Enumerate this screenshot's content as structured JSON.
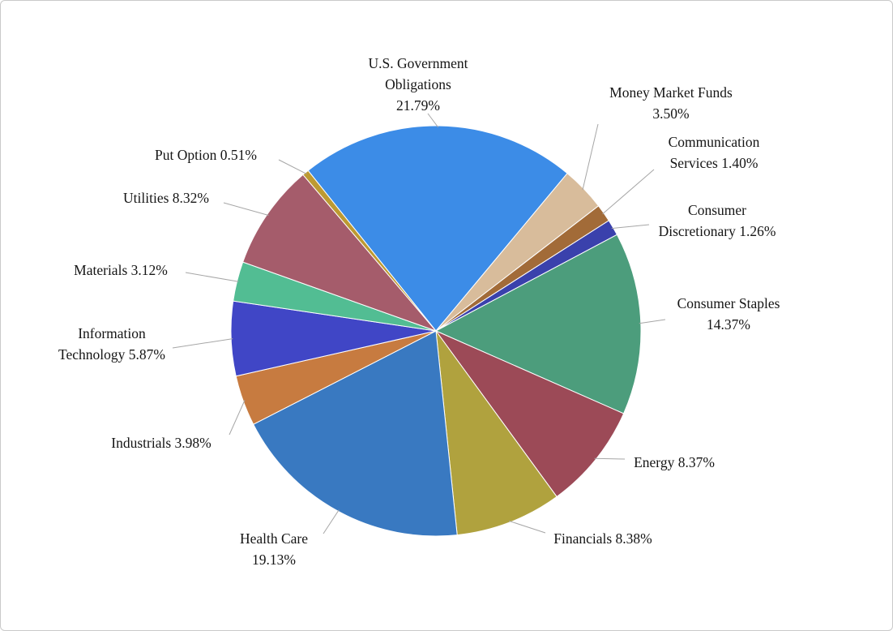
{
  "page": {
    "background": "#ffffff",
    "border_color": "#c9c9c9"
  },
  "chart_data": {
    "type": "pie",
    "title": "",
    "legend_position": "none",
    "direction": "clockwise",
    "start_angle_deg": -38.6,
    "slice_border_color": "#ffffff",
    "leader_line_color": "#a6a6a6",
    "label_color": "#151515",
    "slices": [
      {
        "name": "U.S. Government Obligations",
        "value": 21.79,
        "color": "#3c8ce7",
        "label_lines": [
          "U.S. Government",
          "Obligations",
          "21.79%"
        ]
      },
      {
        "name": "Money Market Funds",
        "value": 3.5,
        "color": "#d8bc9b",
        "label_lines": [
          "Money Market Funds",
          "3.50%"
        ]
      },
      {
        "name": "Communication Services",
        "value": 1.4,
        "color": "#a26b38",
        "label_lines": [
          "Communication",
          "Services 1.40%"
        ]
      },
      {
        "name": "Consumer Discretionary",
        "value": 1.26,
        "color": "#3a41ac",
        "label_lines": [
          "Consumer",
          "Discretionary 1.26%"
        ]
      },
      {
        "name": "Consumer Staples",
        "value": 14.37,
        "color": "#4c9d7c",
        "label_lines": [
          "Consumer Staples",
          "14.37%"
        ]
      },
      {
        "name": "Energy",
        "value": 8.37,
        "color": "#9c4a57",
        "label_lines": [
          "Energy 8.37%"
        ]
      },
      {
        "name": "Financials",
        "value": 8.38,
        "color": "#b0a23e",
        "label_lines": [
          "Financials 8.38%"
        ]
      },
      {
        "name": "Health Care",
        "value": 19.13,
        "color": "#3979c1",
        "label_lines": [
          "Health Care",
          "19.13%"
        ]
      },
      {
        "name": "Industrials",
        "value": 3.98,
        "color": "#c77b40",
        "label_lines": [
          "Industrials 3.98%"
        ]
      },
      {
        "name": "Information Technology",
        "value": 5.87,
        "color": "#4046c6",
        "label_lines": [
          "Information",
          "Technology 5.87%"
        ]
      },
      {
        "name": "Materials",
        "value": 3.12,
        "color": "#52bd93",
        "label_lines": [
          "Materials 3.12%"
        ]
      },
      {
        "name": "Utilities",
        "value": 8.32,
        "color": "#a55c6b",
        "label_lines": [
          "Utilities 8.32%"
        ]
      },
      {
        "name": "Put Option",
        "value": 0.51,
        "color": "#bd9a32",
        "label_lines": [
          "Put Option 0.51%"
        ]
      }
    ]
  }
}
